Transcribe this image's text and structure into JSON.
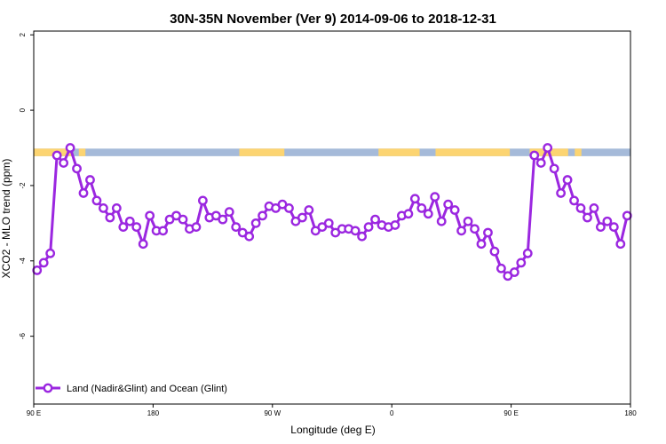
{
  "chart_data": {
    "type": "line",
    "title": "30N-35N November (Ver 9)   2014-09-06 to 2018-12-31",
    "xlabel": "Longitude (deg E)",
    "ylabel": "XCO2 - MLO trend (ppm)",
    "xlim": [
      90,
      540
    ],
    "ylim": [
      -7.8,
      2.1
    ],
    "x_ticks": [
      90,
      180,
      270,
      360,
      450,
      540
    ],
    "x_tick_labels": [
      "90 E",
      "180",
      "90 W",
      "0",
      "90 E",
      "180"
    ],
    "y_ticks": [
      2,
      0,
      -2,
      -4,
      -6
    ],
    "y_tick_labels": [
      "2",
      "0",
      "-2",
      "-4",
      "-6"
    ],
    "grid": false,
    "legend_position": "bottom-left",
    "series": [
      {
        "name": "Land (Nadir&Glint) and Ocean (Glint)",
        "color": "#9b27e0",
        "x": [
          92.5,
          97.5,
          102.5,
          107.5,
          112.5,
          117.5,
          122.5,
          127.5,
          132.5,
          137.5,
          142.5,
          147.5,
          152.5,
          157.5,
          162.5,
          167.5,
          172.5,
          177.5,
          182.5,
          187.5,
          192.5,
          197.5,
          202.5,
          207.5,
          212.5,
          217.5,
          222.5,
          227.5,
          232.5,
          237.5,
          242.5,
          247.5,
          252.5,
          257.5,
          262.5,
          267.5,
          272.5,
          277.5,
          282.5,
          287.5,
          292.5,
          297.5,
          302.5,
          307.5,
          312.5,
          317.5,
          322.5,
          327.5,
          332.5,
          337.5,
          342.5,
          347.5,
          352.5,
          357.5,
          362.5,
          367.5,
          372.5,
          377.5,
          382.5,
          387.5,
          392.5,
          397.5,
          402.5,
          407.5,
          412.5,
          417.5,
          422.5,
          427.5,
          432.5,
          437.5,
          442.5,
          447.5,
          452.5,
          457.5,
          462.5,
          467.5,
          472.5,
          477.5,
          482.5,
          487.5,
          492.5,
          497.5,
          502.5,
          507.5,
          512.5,
          517.5,
          522.5,
          527.5,
          532.5,
          537.5
        ],
        "values": [
          -4.25,
          -4.05,
          -3.8,
          -1.2,
          -1.4,
          -1.0,
          -1.55,
          -2.2,
          -1.85,
          -2.4,
          -2.6,
          -2.85,
          -2.6,
          -3.1,
          -2.95,
          -3.1,
          -3.55,
          -2.8,
          -3.2,
          -3.2,
          -2.9,
          -2.8,
          -2.9,
          -3.15,
          -3.1,
          -2.4,
          -2.85,
          -2.8,
          -2.9,
          -2.7,
          -3.1,
          -3.25,
          -3.35,
          -3.0,
          -2.8,
          -2.55,
          -2.6,
          -2.5,
          -2.6,
          -2.95,
          -2.85,
          -2.65,
          -3.2,
          -3.1,
          -3.0,
          -3.25,
          -3.15,
          -3.15,
          -3.2,
          -3.35,
          -3.1,
          -2.9,
          -3.05,
          -3.1,
          -3.05,
          -2.8,
          -2.75,
          -2.35,
          -2.6,
          -2.75,
          -2.3,
          -2.95,
          -2.5,
          -2.65,
          -3.2,
          -2.95,
          -3.15,
          -3.55,
          -3.25,
          -3.75,
          -4.2,
          -4.4,
          -4.3,
          -4.05,
          -3.8,
          -1.2,
          -1.4,
          -1.0,
          -1.55,
          -2.2,
          -1.85,
          -2.4,
          -2.6,
          -2.85,
          -2.6,
          -3.1,
          -2.95,
          -3.1,
          -3.55,
          -2.8
        ]
      }
    ],
    "surface_strip": {
      "y_top": -1.02,
      "y_bottom": -1.22,
      "ocean_color": "#a5bad9",
      "land_color": "#fcd471",
      "land_segments": [
        [
          90,
          119
        ],
        [
          124,
          129
        ],
        [
          245,
          279
        ],
        [
          350,
          381
        ],
        [
          393,
          449
        ],
        [
          464,
          493
        ],
        [
          498,
          503
        ]
      ]
    }
  }
}
